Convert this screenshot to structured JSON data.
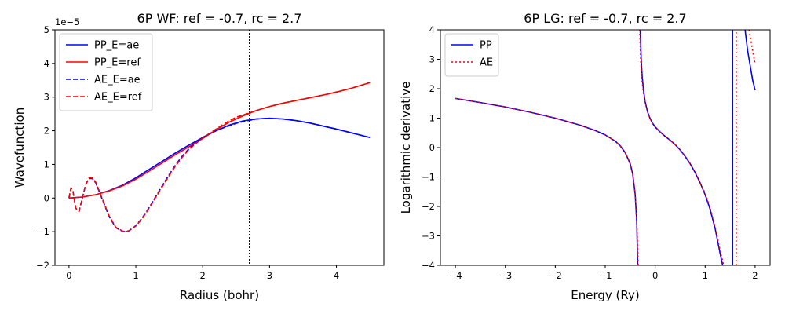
{
  "chart_data": [
    {
      "type": "line",
      "title": "6P WF: ref = -0.7, rc = 2.7",
      "xlabel": "Radius (bohr)",
      "ylabel": "Wavefunction",
      "y_offset_label": "1e−5",
      "xlim": [
        -0.21,
        4.71
      ],
      "ylim": [
        -2,
        5
      ],
      "x_ticks": [
        0,
        1,
        2,
        3,
        4
      ],
      "y_ticks": [
        -2,
        -1,
        0,
        1,
        2,
        3,
        4,
        5
      ],
      "grid": false,
      "legend": "top-left",
      "vline_x": 2.7,
      "series": [
        {
          "name": "PP_E=ae",
          "color": "#0000ff",
          "dash": "solid",
          "x": [
            0,
            0.2,
            0.4,
            0.6,
            0.8,
            1.0,
            1.2,
            1.4,
            1.6,
            1.8,
            2.0,
            2.2,
            2.4,
            2.6,
            2.8,
            3.0,
            3.2,
            3.4,
            3.6,
            3.8,
            4.0,
            4.2,
            4.4,
            4.5
          ],
          "y": [
            0,
            0.03,
            0.1,
            0.22,
            0.38,
            0.6,
            0.85,
            1.1,
            1.35,
            1.58,
            1.8,
            2.0,
            2.17,
            2.29,
            2.35,
            2.37,
            2.35,
            2.3,
            2.23,
            2.14,
            2.05,
            1.95,
            1.85,
            1.8
          ]
        },
        {
          "name": "PP_E=ref",
          "color": "#ff0000",
          "dash": "solid",
          "x": [
            0,
            0.2,
            0.4,
            0.6,
            0.8,
            1.0,
            1.2,
            1.4,
            1.6,
            1.8,
            2.0,
            2.2,
            2.4,
            2.6,
            2.8,
            3.0,
            3.2,
            3.4,
            3.6,
            3.8,
            4.0,
            4.2,
            4.4,
            4.5
          ],
          "y": [
            0,
            0.03,
            0.1,
            0.21,
            0.36,
            0.56,
            0.8,
            1.05,
            1.3,
            1.53,
            1.77,
            2.03,
            2.26,
            2.44,
            2.6,
            2.72,
            2.82,
            2.9,
            2.98,
            3.06,
            3.15,
            3.25,
            3.37,
            3.43
          ]
        },
        {
          "name": "AE_E=ae",
          "color": "#0000ff",
          "dash": "dashed",
          "x": [
            0,
            0.03,
            0.06,
            0.1,
            0.15,
            0.2,
            0.25,
            0.3,
            0.35,
            0.4,
            0.5,
            0.6,
            0.7,
            0.8,
            0.85,
            0.9,
            1.0,
            1.1,
            1.2,
            1.3,
            1.4,
            1.5,
            1.6,
            1.7,
            1.8,
            1.9,
            2.0,
            2.1,
            2.2,
            2.3,
            2.4,
            2.5,
            2.6,
            2.7,
            2.8,
            3.0,
            3.2,
            3.4,
            3.6,
            3.8,
            4.0,
            4.2,
            4.4,
            4.5
          ],
          "y": [
            0,
            0.3,
            0.2,
            -0.3,
            -0.4,
            0.0,
            0.4,
            0.58,
            0.58,
            0.45,
            -0.05,
            -0.55,
            -0.88,
            -0.99,
            -1.0,
            -0.97,
            -0.82,
            -0.58,
            -0.28,
            0.05,
            0.38,
            0.7,
            1.0,
            1.26,
            1.48,
            1.66,
            1.8,
            1.91,
            2.0,
            2.08,
            2.15,
            2.22,
            2.27,
            2.31,
            2.35,
            2.37,
            2.35,
            2.3,
            2.23,
            2.14,
            2.05,
            1.95,
            1.85,
            1.8
          ]
        },
        {
          "name": "AE_E=ref",
          "color": "#ff0000",
          "dash": "dashed",
          "x": [
            0,
            0.03,
            0.06,
            0.1,
            0.15,
            0.2,
            0.25,
            0.3,
            0.35,
            0.4,
            0.5,
            0.6,
            0.7,
            0.8,
            0.85,
            0.9,
            1.0,
            1.1,
            1.2,
            1.3,
            1.4,
            1.5,
            1.6,
            1.7,
            1.8,
            1.9,
            2.0,
            2.1,
            2.2,
            2.3,
            2.4,
            2.5,
            2.6,
            2.7,
            2.8,
            3.0,
            3.2,
            3.4,
            3.6,
            3.8,
            4.0,
            4.2,
            4.4,
            4.5
          ],
          "y": [
            0,
            0.3,
            0.2,
            -0.3,
            -0.4,
            0.0,
            0.4,
            0.6,
            0.6,
            0.47,
            -0.03,
            -0.53,
            -0.87,
            -0.98,
            -1.0,
            -0.97,
            -0.83,
            -0.6,
            -0.3,
            0.03,
            0.35,
            0.67,
            0.97,
            1.23,
            1.45,
            1.63,
            1.78,
            1.92,
            2.05,
            2.18,
            2.3,
            2.4,
            2.47,
            2.53,
            2.6,
            2.72,
            2.82,
            2.9,
            2.98,
            3.06,
            3.15,
            3.25,
            3.37,
            3.43
          ]
        }
      ]
    },
    {
      "type": "line",
      "title": "6P LG: ref = -0.7, rc = 2.7",
      "xlabel": "Energy (Ry)",
      "ylabel": "Logarithmic derivative",
      "xlim": [
        -4.3,
        2.3
      ],
      "ylim": [
        -4,
        4
      ],
      "x_ticks": [
        -4,
        -3,
        -2,
        -1,
        0,
        1,
        2
      ],
      "y_ticks": [
        -4,
        -3,
        -2,
        -1,
        0,
        1,
        2,
        3,
        4
      ],
      "grid": false,
      "legend": "top-left",
      "series": [
        {
          "name": "PP",
          "color": "#0000ff",
          "dash": "solid",
          "segments": [
            {
              "x": [
                -4.0,
                -3.5,
                -3.0,
                -2.5,
                -2.0,
                -1.5,
                -1.2,
                -1.0,
                -0.8,
                -0.7,
                -0.6,
                -0.5,
                -0.45,
                -0.4,
                -0.37,
                -0.35
              ],
              "y": [
                1.67,
                1.53,
                1.38,
                1.2,
                1.0,
                0.76,
                0.58,
                0.43,
                0.22,
                0.06,
                -0.17,
                -0.55,
                -0.9,
                -1.6,
                -2.5,
                -4.0
              ]
            },
            {
              "x": [
                -0.3,
                -0.28,
                -0.26,
                -0.23,
                -0.2,
                -0.15,
                -0.1,
                -0.05,
                0.0,
                0.1,
                0.2,
                0.3,
                0.4,
                0.5,
                0.6,
                0.7,
                0.8,
                0.9,
                1.0,
                1.1,
                1.2,
                1.3,
                1.35
              ],
              "y": [
                4.0,
                3.0,
                2.4,
                1.9,
                1.55,
                1.2,
                0.98,
                0.82,
                0.7,
                0.53,
                0.38,
                0.25,
                0.1,
                -0.08,
                -0.3,
                -0.55,
                -0.85,
                -1.2,
                -1.6,
                -2.1,
                -2.75,
                -3.6,
                -4.0
              ]
            },
            {
              "x": [
                1.55,
                1.55
              ],
              "y": [
                -4.0,
                4.0
              ]
            },
            {
              "x": [
                1.8,
                1.85,
                1.9,
                1.95,
                2.0
              ],
              "y": [
                4.0,
                3.3,
                2.8,
                2.3,
                1.95
              ]
            }
          ]
        },
        {
          "name": "AE",
          "color": "#ff0000",
          "dash": "dotted",
          "segments": [
            {
              "x": [
                -4.0,
                -3.5,
                -3.0,
                -2.5,
                -2.0,
                -1.5,
                -1.2,
                -1.0,
                -0.8,
                -0.7,
                -0.6,
                -0.5,
                -0.45,
                -0.4,
                -0.37,
                -0.34
              ],
              "y": [
                1.67,
                1.53,
                1.38,
                1.2,
                1.0,
                0.76,
                0.58,
                0.43,
                0.22,
                0.06,
                -0.17,
                -0.55,
                -0.9,
                -1.6,
                -2.5,
                -4.0
              ]
            },
            {
              "x": [
                -0.31,
                -0.29,
                -0.27,
                -0.24,
                -0.2,
                -0.15,
                -0.1,
                -0.05,
                0.0,
                0.1,
                0.2,
                0.3,
                0.4,
                0.5,
                0.6,
                0.7,
                0.8,
                0.9,
                1.0,
                1.1,
                1.2,
                1.3,
                1.37
              ],
              "y": [
                4.0,
                3.0,
                2.4,
                1.9,
                1.55,
                1.2,
                0.98,
                0.82,
                0.7,
                0.53,
                0.38,
                0.25,
                0.1,
                -0.08,
                -0.3,
                -0.55,
                -0.85,
                -1.2,
                -1.55,
                -2.05,
                -2.7,
                -3.5,
                -4.0
              ]
            },
            {
              "x": [
                1.62,
                1.62
              ],
              "y": [
                -4.0,
                4.0
              ]
            },
            {
              "x": [
                1.88,
                1.92,
                1.96,
                2.0
              ],
              "y": [
                4.0,
                3.6,
                3.2,
                2.85
              ]
            }
          ]
        }
      ]
    }
  ]
}
